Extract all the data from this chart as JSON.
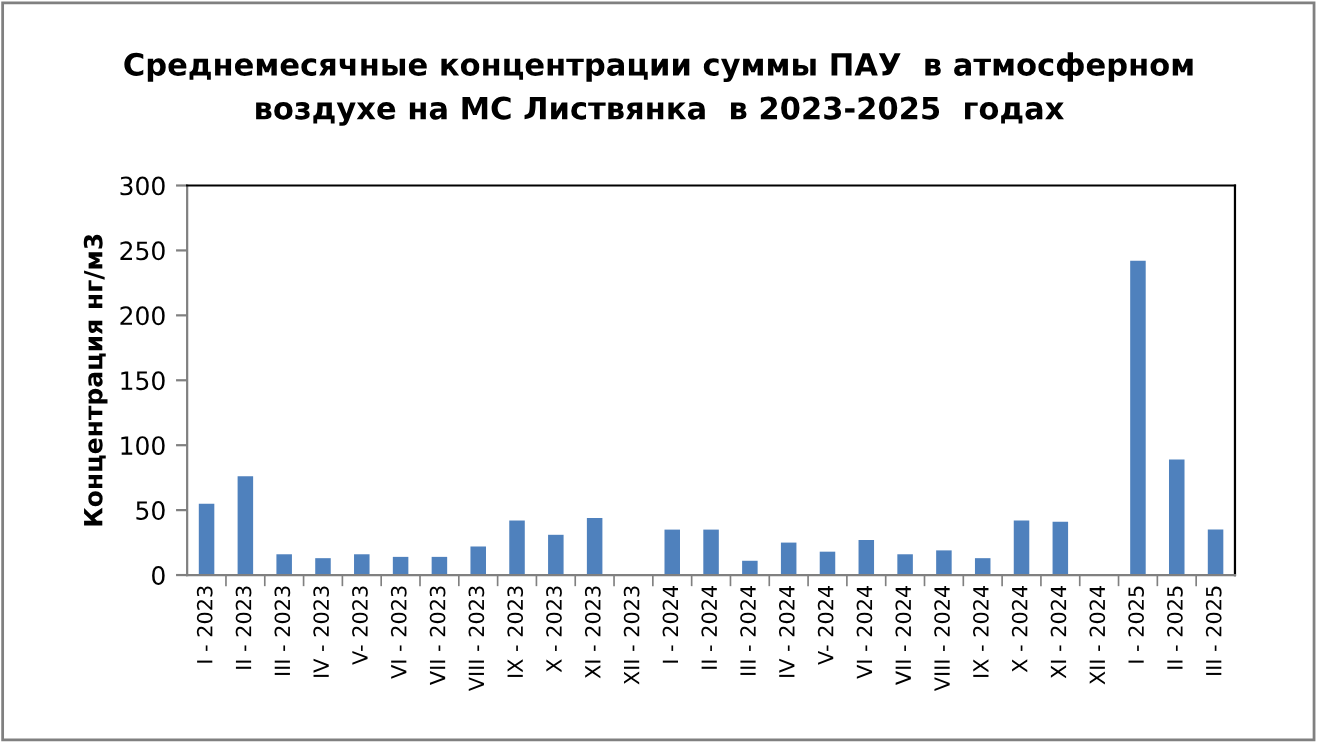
{
  "chart_data": {
    "type": "bar",
    "title": "Среднемесячные концентрации суммы ПАУ  в атмосферном\nвоздухе на МС Листвянка  в 2023-2025  годах",
    "ylabel": "Концентрация нг/м3",
    "categories": [
      "I - 2023",
      "II - 2023",
      "III - 2023",
      "IV - 2023",
      "V- 2023",
      "VI - 2023",
      "VII - 2023",
      "VIII - 2023",
      "IX - 2023",
      "X - 2023",
      "XI - 2023",
      "XII - 2023",
      "I - 2024",
      "II - 2024",
      "III - 2024",
      "IV - 2024",
      "V- 2024",
      "VI - 2024",
      "VII - 2024",
      "VIII - 2024",
      "IX - 2024",
      "X - 2024",
      "XI - 2024",
      "XII - 2024",
      "I - 2025",
      "II - 2025",
      "III - 2025"
    ],
    "values": [
      55,
      76,
      16,
      13,
      16,
      14,
      14,
      22,
      42,
      31,
      44,
      null,
      35,
      35,
      11,
      25,
      18,
      27,
      16,
      19,
      13,
      42,
      41,
      null,
      242,
      89,
      35
    ],
    "color": "#4f81bd",
    "ylim": [
      0,
      300
    ],
    "yticks": [
      0,
      50,
      100,
      150,
      200,
      250,
      300
    ],
    "grid": false,
    "legend": false
  }
}
